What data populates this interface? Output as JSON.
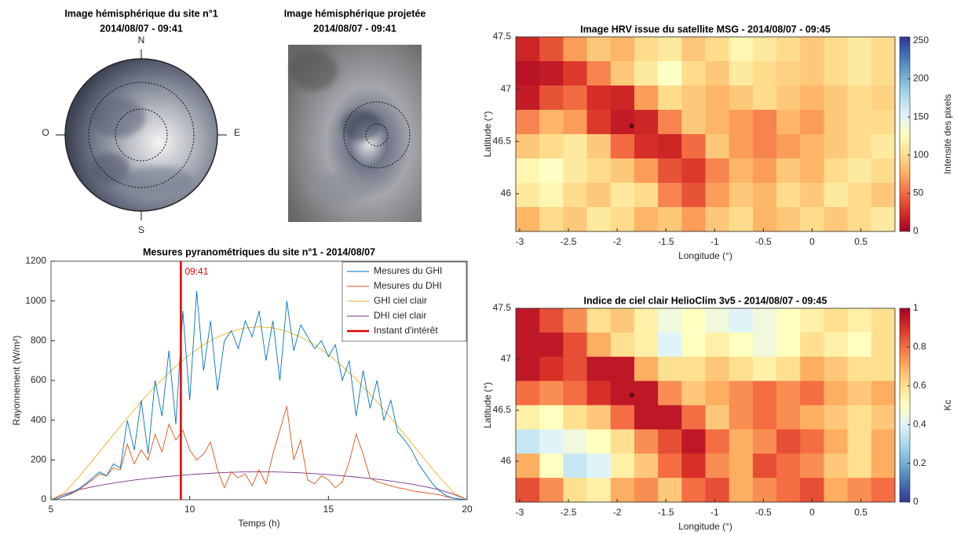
{
  "chart_data": [
    {
      "type": "image",
      "title": [
        "Image hémisphérique du site n°1",
        "2014/08/07 - 09:41"
      ],
      "compass": [
        "N",
        "E",
        "S",
        "O"
      ]
    },
    {
      "type": "image",
      "title": [
        "Image hémisphérique projetée",
        "2014/08/07 - 09:41"
      ]
    },
    {
      "type": "line",
      "title": "Mesures pyranométriques du site n°1 - 2014/08/07",
      "x_label": "Temps (h)",
      "y_label": "Rayonnement (W/m²)",
      "xlim": [
        5,
        20
      ],
      "xticks": [
        5,
        10,
        15,
        20
      ],
      "ylim": [
        0,
        1200
      ],
      "yticks": [
        0,
        200,
        400,
        600,
        800,
        1000,
        1200
      ],
      "legend": "northeast",
      "series": [
        {
          "name": "Mesures du GHI",
          "color": "#0072bd",
          "x": [
            5,
            5.25,
            5.5,
            5.75,
            6,
            6.25,
            6.5,
            6.75,
            7,
            7.25,
            7.5,
            7.75,
            8,
            8.25,
            8.5,
            8.75,
            9,
            9.25,
            9.5,
            9.75,
            10,
            10.25,
            10.5,
            10.75,
            11,
            11.25,
            11.5,
            11.75,
            12,
            12.25,
            12.5,
            12.75,
            13,
            13.25,
            13.5,
            13.75,
            14,
            14.25,
            14.5,
            14.75,
            15,
            15.25,
            15.5,
            15.75,
            16,
            16.25,
            16.5,
            16.75,
            17,
            17.25,
            17.5,
            17.75,
            18,
            18.25,
            18.5,
            18.75,
            19,
            19.25,
            19.5,
            19.75,
            20
          ],
          "values": [
            0,
            5,
            20,
            35,
            55,
            80,
            110,
            140,
            120,
            180,
            160,
            400,
            250,
            500,
            230,
            600,
            420,
            750,
            380,
            950,
            500,
            1050,
            650,
            900,
            550,
            800,
            850,
            760,
            900,
            820,
            950,
            700,
            900,
            600,
            1000,
            750,
            880,
            820,
            760,
            800,
            720,
            780,
            600,
            700,
            420,
            650,
            460,
            600,
            400,
            500,
            340,
            300,
            250,
            180,
            130,
            80,
            45,
            20,
            8,
            3,
            0
          ]
        },
        {
          "name": "Mesures du DHI",
          "color": "#d95319",
          "x": [
            5,
            5.25,
            5.5,
            5.75,
            6,
            6.25,
            6.5,
            6.75,
            7,
            7.25,
            7.5,
            7.75,
            8,
            8.25,
            8.5,
            8.75,
            9,
            9.25,
            9.5,
            9.75,
            10,
            10.25,
            10.5,
            10.75,
            11,
            11.25,
            11.5,
            11.75,
            12,
            12.25,
            12.5,
            12.75,
            13,
            13.25,
            13.5,
            13.75,
            14,
            14.25,
            14.5,
            14.75,
            15,
            15.25,
            15.5,
            15.75,
            16,
            16.25,
            16.5,
            16.75,
            17,
            17.25,
            17.5,
            17.75,
            18,
            18.25,
            18.5,
            18.75,
            19,
            19.25,
            19.5,
            19.75,
            20
          ],
          "values": [
            0,
            5,
            18,
            30,
            50,
            75,
            100,
            130,
            120,
            160,
            150,
            280,
            180,
            250,
            200,
            330,
            240,
            380,
            300,
            350,
            250,
            200,
            230,
            290,
            150,
            60,
            140,
            110,
            130,
            70,
            150,
            80,
            230,
            350,
            470,
            200,
            300,
            100,
            80,
            120,
            100,
            60,
            90,
            190,
            330,
            230,
            110,
            90,
            80,
            70,
            60,
            55,
            45,
            40,
            35,
            30,
            25,
            15,
            8,
            3,
            0
          ]
        },
        {
          "name": "GHI ciel clair",
          "color": "#edb120",
          "x": [
            5,
            5.5,
            6,
            6.5,
            7,
            7.5,
            8,
            8.5,
            9,
            9.5,
            10,
            10.5,
            11,
            11.5,
            12,
            12.5,
            13,
            13.5,
            14,
            14.5,
            15,
            15.5,
            16,
            16.5,
            17,
            17.5,
            18,
            18.5,
            19,
            19.5,
            20
          ],
          "values": [
            0,
            37,
            114,
            198,
            284,
            370,
            453,
            532,
            605,
            672,
            730,
            780,
            818,
            847,
            864,
            870,
            864,
            847,
            818,
            780,
            730,
            672,
            605,
            532,
            453,
            370,
            284,
            198,
            114,
            37,
            0
          ]
        },
        {
          "name": "DHI ciel clair",
          "color": "#7e2f8e",
          "x": [
            5,
            5.5,
            6,
            6.5,
            7,
            7.5,
            8,
            8.5,
            9,
            9.5,
            10,
            10.5,
            11,
            11.5,
            12,
            12.5,
            13,
            13.5,
            14,
            14.5,
            15,
            15.5,
            16,
            16.5,
            17,
            17.5,
            18,
            18.5,
            19,
            19.5,
            20
          ],
          "values": [
            0,
            28,
            50,
            65,
            78,
            89,
            99,
            107,
            114,
            120,
            126,
            131,
            135,
            138,
            140,
            140,
            140,
            138,
            135,
            131,
            126,
            120,
            114,
            107,
            99,
            89,
            78,
            65,
            50,
            28,
            0
          ]
        },
        {
          "name": "Instant d'intérêt",
          "color": "#e00000",
          "type": "vline",
          "x": 9.68,
          "label": "09:41"
        }
      ]
    },
    {
      "type": "heatmap",
      "title": "Image HRV issue du satellite MSG - 2014/08/07 - 09:45",
      "x_label": "Longitude (°)",
      "y_label": "Latitude (°)",
      "colorbar_label": "Intensité des pixels",
      "xlim": [
        -3.04,
        0.85
      ],
      "xticks": [
        -3,
        -2.5,
        -2,
        -1.5,
        -1,
        -0.5,
        0,
        0.5
      ],
      "ylim": [
        45.64,
        47.5
      ],
      "yticks": [
        46,
        46.5,
        47,
        47.5
      ],
      "clim": [
        0,
        255
      ],
      "cticks": [
        0,
        50,
        100,
        150,
        200,
        250
      ],
      "colormap": [
        "#a50026",
        "#d73027",
        "#f46d43",
        "#fdae61",
        "#fee090",
        "#ffffbf",
        "#e0f3f8",
        "#abd9e9",
        "#74add1",
        "#4575b4",
        "#313695"
      ],
      "marker": {
        "x": -1.85,
        "y": 46.65
      },
      "z": [
        [
          20,
          40,
          70,
          90,
          80,
          100,
          110,
          90,
          100,
          120,
          110,
          100,
          90,
          100,
          110,
          100
        ],
        [
          10,
          15,
          30,
          60,
          90,
          110,
          130,
          100,
          90,
          110,
          100,
          95,
          90,
          100,
          110,
          100
        ],
        [
          15,
          40,
          50,
          25,
          20,
          70,
          100,
          90,
          80,
          90,
          100,
          90,
          80,
          90,
          100,
          95
        ],
        [
          60,
          80,
          70,
          30,
          15,
          20,
          60,
          90,
          80,
          70,
          60,
          80,
          70,
          90,
          100,
          100
        ],
        [
          90,
          100,
          110,
          90,
          50,
          25,
          20,
          50,
          90,
          70,
          60,
          70,
          80,
          90,
          100,
          110
        ],
        [
          120,
          130,
          110,
          100,
          90,
          70,
          40,
          30,
          60,
          80,
          70,
          90,
          80,
          100,
          110,
          100
        ],
        [
          110,
          120,
          100,
          90,
          110,
          100,
          60,
          40,
          70,
          90,
          80,
          100,
          90,
          110,
          100,
          90
        ],
        [
          80,
          100,
          90,
          110,
          100,
          80,
          90,
          70,
          90,
          100,
          80,
          90,
          100,
          90,
          100,
          110
        ]
      ]
    },
    {
      "type": "heatmap",
      "title": "Indice de ciel clair HelioClim 3v5 - 2014/08/07 - 09:45",
      "x_label": "Longitude (°)",
      "y_label": "Latitude (°)",
      "colorbar_label": "Kc",
      "xlim": [
        -3.04,
        0.85
      ],
      "xticks": [
        -3,
        -2.5,
        -2,
        -1.5,
        -1,
        -0.5,
        0,
        0.5
      ],
      "ylim": [
        45.6,
        47.5
      ],
      "yticks": [
        46,
        46.5,
        47,
        47.5
      ],
      "clim": [
        0,
        1
      ],
      "cticks": [
        0,
        0.2,
        0.4,
        0.6,
        0.8,
        1
      ],
      "colormap": [
        "#313695",
        "#4575b4",
        "#74add1",
        "#abd9e9",
        "#e0f3f8",
        "#ffffbf",
        "#fee090",
        "#fdae61",
        "#f46d43",
        "#d73027",
        "#a50026"
      ],
      "marker": {
        "x": -1.85,
        "y": 46.65
      },
      "z": [
        [
          0.95,
          0.85,
          0.75,
          0.6,
          0.65,
          0.55,
          0.45,
          0.5,
          0.45,
          0.4,
          0.45,
          0.5,
          0.55,
          0.6,
          0.55,
          0.6
        ],
        [
          0.95,
          0.95,
          0.85,
          0.7,
          0.6,
          0.55,
          0.4,
          0.5,
          0.55,
          0.5,
          0.45,
          0.5,
          0.6,
          0.55,
          0.5,
          0.6
        ],
        [
          0.95,
          0.9,
          0.85,
          0.95,
          0.95,
          0.7,
          0.6,
          0.6,
          0.65,
          0.6,
          0.55,
          0.6,
          0.7,
          0.65,
          0.6,
          0.6
        ],
        [
          0.8,
          0.75,
          0.8,
          0.9,
          0.95,
          0.95,
          0.75,
          0.65,
          0.7,
          0.75,
          0.8,
          0.75,
          0.8,
          0.7,
          0.65,
          0.7
        ],
        [
          0.55,
          0.5,
          0.6,
          0.65,
          0.8,
          0.95,
          0.95,
          0.8,
          0.65,
          0.75,
          0.8,
          0.75,
          0.7,
          0.65,
          0.6,
          0.65
        ],
        [
          0.35,
          0.4,
          0.45,
          0.5,
          0.6,
          0.75,
          0.85,
          0.95,
          0.8,
          0.7,
          0.75,
          0.85,
          0.8,
          0.7,
          0.6,
          0.7
        ],
        [
          0.7,
          0.5,
          0.35,
          0.4,
          0.55,
          0.65,
          0.8,
          0.9,
          0.75,
          0.7,
          0.85,
          0.8,
          0.75,
          0.65,
          0.6,
          0.7
        ],
        [
          0.85,
          0.75,
          0.6,
          0.55,
          0.7,
          0.75,
          0.65,
          0.8,
          0.85,
          0.7,
          0.75,
          0.8,
          0.85,
          0.7,
          0.75,
          0.8
        ]
      ]
    }
  ]
}
